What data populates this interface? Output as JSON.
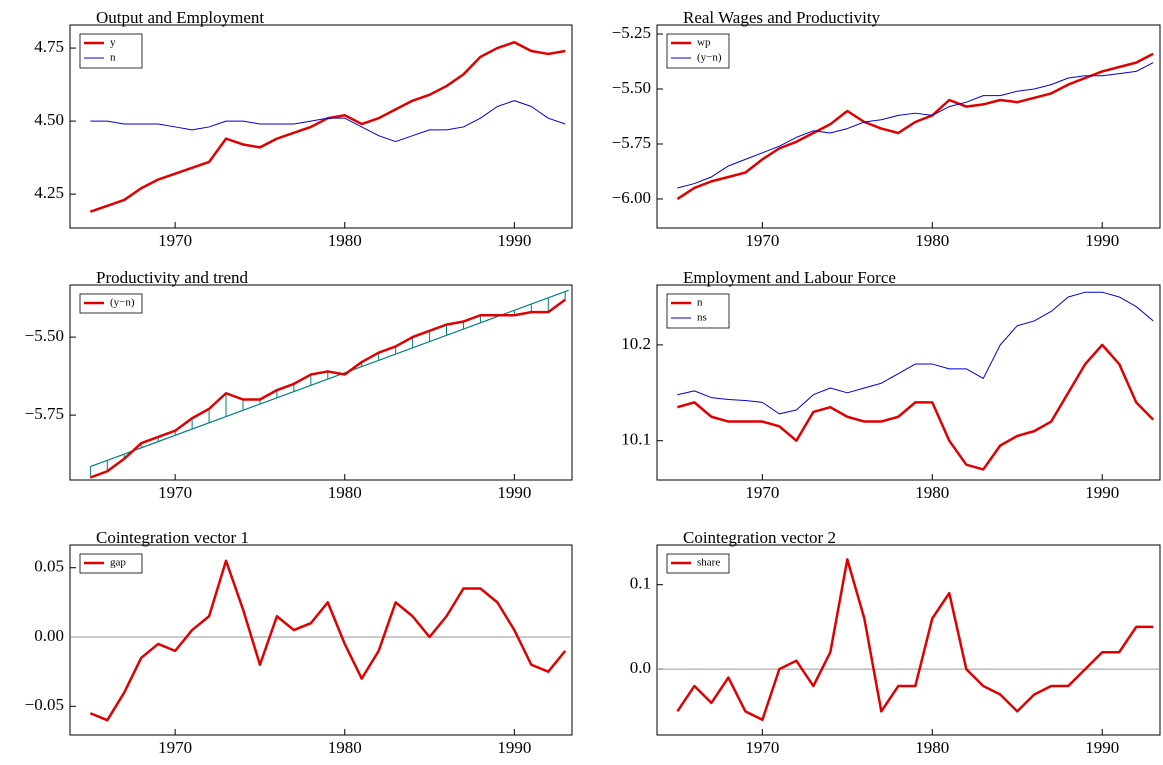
{
  "chart_data": [
    {
      "type": "line",
      "title": "Output and Employment",
      "x": [
        1965,
        1966,
        1967,
        1968,
        1969,
        1970,
        1971,
        1972,
        1973,
        1974,
        1975,
        1976,
        1977,
        1978,
        1979,
        1980,
        1981,
        1982,
        1983,
        1984,
        1985,
        1986,
        1987,
        1988,
        1989,
        1990,
        1991,
        1992,
        1993
      ],
      "series": [
        {
          "name": "y",
          "color": "#e00000",
          "values": [
            4.19,
            4.21,
            4.23,
            4.27,
            4.3,
            4.32,
            4.34,
            4.36,
            4.44,
            4.42,
            4.41,
            4.44,
            4.46,
            4.48,
            4.51,
            4.52,
            4.49,
            4.51,
            4.54,
            4.57,
            4.59,
            4.62,
            4.66,
            4.72,
            4.75,
            4.77,
            4.74,
            4.73,
            4.74
          ]
        },
        {
          "name": "n",
          "color": "#0000d0",
          "values": [
            4.5,
            4.5,
            4.49,
            4.49,
            4.49,
            4.48,
            4.47,
            4.48,
            4.5,
            4.5,
            4.49,
            4.49,
            4.49,
            4.5,
            4.51,
            4.51,
            4.48,
            4.45,
            4.43,
            4.45,
            4.47,
            4.47,
            4.48,
            4.51,
            4.55,
            4.57,
            4.55,
            4.51,
            4.49
          ]
        }
      ],
      "xlim": [
        1963.8,
        1993.4
      ],
      "ylim": [
        4.134,
        4.829
      ],
      "xticks": [
        1970,
        1980,
        1990
      ],
      "yticks": [
        {
          "value": 4.25,
          "label": "4.25"
        },
        {
          "value": 4.5,
          "label": "4.50"
        },
        {
          "value": 4.75,
          "label": "4.75"
        }
      ]
    },
    {
      "type": "line",
      "title": "Real Wages and Productivity",
      "x": [
        1965,
        1966,
        1967,
        1968,
        1969,
        1970,
        1971,
        1972,
        1973,
        1974,
        1975,
        1976,
        1977,
        1978,
        1979,
        1980,
        1981,
        1982,
        1983,
        1984,
        1985,
        1986,
        1987,
        1988,
        1989,
        1990,
        1991,
        1992,
        1993
      ],
      "series": [
        {
          "name": "wp",
          "color": "#e00000",
          "values": [
            -6.0,
            -5.95,
            -5.92,
            -5.9,
            -5.88,
            -5.82,
            -5.77,
            -5.74,
            -5.7,
            -5.66,
            -5.6,
            -5.65,
            -5.68,
            -5.7,
            -5.65,
            -5.62,
            -5.55,
            -5.58,
            -5.57,
            -5.55,
            -5.56,
            -5.54,
            -5.52,
            -5.48,
            -5.45,
            -5.42,
            -5.4,
            -5.38,
            -5.34
          ]
        },
        {
          "name": "(y−n)",
          "color": "#0000d0",
          "values": [
            -5.95,
            -5.93,
            -5.9,
            -5.85,
            -5.82,
            -5.79,
            -5.76,
            -5.72,
            -5.69,
            -5.7,
            -5.68,
            -5.65,
            -5.64,
            -5.62,
            -5.61,
            -5.62,
            -5.58,
            -5.56,
            -5.53,
            -5.53,
            -5.51,
            -5.5,
            -5.48,
            -5.45,
            -5.44,
            -5.44,
            -5.43,
            -5.42,
            -5.38
          ]
        }
      ],
      "xlim": [
        1963.8,
        1993.4
      ],
      "ylim": [
        -6.132,
        -5.209
      ],
      "xticks": [
        1970,
        1980,
        1990
      ],
      "yticks": [
        {
          "value": -6,
          "label": "−6.00"
        },
        {
          "value": -5.75,
          "label": "−5.75"
        },
        {
          "value": -5.5,
          "label": "−5.50"
        },
        {
          "value": -5.25,
          "label": "−5.25"
        }
      ]
    },
    {
      "type": "line",
      "title": "Productivity and trend",
      "x": [
        1965,
        1966,
        1967,
        1968,
        1969,
        1970,
        1971,
        1972,
        1973,
        1974,
        1975,
        1976,
        1977,
        1978,
        1979,
        1980,
        1981,
        1982,
        1983,
        1984,
        1985,
        1986,
        1987,
        1988,
        1989,
        1990,
        1991,
        1992,
        1993
      ],
      "series": [
        {
          "name": "(y−n)",
          "color": "#e00000",
          "values": [
            -5.95,
            -5.93,
            -5.89,
            -5.84,
            -5.82,
            -5.8,
            -5.76,
            -5.73,
            -5.68,
            -5.7,
            -5.7,
            -5.67,
            -5.65,
            -5.62,
            -5.61,
            -5.62,
            -5.58,
            -5.55,
            -5.53,
            -5.5,
            -5.48,
            -5.46,
            -5.45,
            -5.43,
            -5.43,
            -5.43,
            -5.42,
            -5.42,
            -5.38
          ]
        }
      ],
      "trend": {
        "color": "#008080",
        "x": [
          1965,
          1993.2
        ],
        "values": [
          -5.915,
          -5.35
        ]
      },
      "xlim": [
        1963.8,
        1993.4
      ],
      "ylim": [
        -5.958,
        -5.333
      ],
      "xticks": [
        1970,
        1980,
        1990
      ],
      "yticks": [
        {
          "value": -5.75,
          "label": "−5.75"
        },
        {
          "value": -5.5,
          "label": "−5.50"
        }
      ]
    },
    {
      "type": "line",
      "title": "Employment and Labour Force",
      "x": [
        1965,
        1966,
        1967,
        1968,
        1969,
        1970,
        1971,
        1972,
        1973,
        1974,
        1975,
        1976,
        1977,
        1978,
        1979,
        1980,
        1981,
        1982,
        1983,
        1984,
        1985,
        1986,
        1987,
        1988,
        1989,
        1990,
        1991,
        1992,
        1993
      ],
      "series": [
        {
          "name": "n",
          "color": "#e00000",
          "values": [
            10.135,
            10.14,
            10.125,
            10.12,
            10.12,
            10.12,
            10.115,
            10.1,
            10.13,
            10.135,
            10.125,
            10.12,
            10.12,
            10.125,
            10.14,
            10.14,
            10.1,
            10.075,
            10.07,
            10.095,
            10.105,
            10.11,
            10.12,
            10.15,
            10.18,
            10.2,
            10.18,
            10.14,
            10.122
          ]
        },
        {
          "name": "ns",
          "color": "#0000d0",
          "values": [
            10.148,
            10.152,
            10.145,
            10.143,
            10.142,
            10.14,
            10.128,
            10.132,
            10.148,
            10.155,
            10.15,
            10.155,
            10.16,
            10.17,
            10.18,
            10.18,
            10.175,
            10.175,
            10.165,
            10.2,
            10.22,
            10.225,
            10.235,
            10.25,
            10.255,
            10.255,
            10.25,
            10.24,
            10.225
          ]
        }
      ],
      "xlim": [
        1963.8,
        1993.4
      ],
      "ylim": [
        10.059,
        10.2625
      ],
      "xticks": [
        1970,
        1980,
        1990
      ],
      "yticks": [
        10.1,
        10.2
      ]
    },
    {
      "type": "line",
      "title": "Cointegration vector 1",
      "x": [
        1965,
        1966,
        1967,
        1968,
        1969,
        1970,
        1971,
        1972,
        1973,
        1974,
        1975,
        1976,
        1977,
        1978,
        1979,
        1980,
        1981,
        1982,
        1983,
        1984,
        1985,
        1986,
        1987,
        1988,
        1989,
        1990,
        1991,
        1992,
        1993
      ],
      "series": [
        {
          "name": "gap",
          "color": "#e00000",
          "values": [
            -0.055,
            -0.06,
            -0.04,
            -0.015,
            -0.005,
            -0.01,
            0.005,
            0.015,
            0.055,
            0.02,
            -0.02,
            0.015,
            0.005,
            0.01,
            0.025,
            -0.005,
            -0.03,
            -0.01,
            0.025,
            0.015,
            0.0,
            0.015,
            0.035,
            0.035,
            0.025,
            0.005,
            -0.02,
            -0.025,
            -0.01
          ]
        }
      ],
      "hline": 0,
      "xlim": [
        1963.8,
        1993.4
      ],
      "ylim": [
        -0.0707,
        0.0664
      ],
      "xticks": [
        1970,
        1980,
        1990
      ],
      "yticks": [
        {
          "value": -0.05,
          "label": "−0.05"
        },
        {
          "value": 0,
          "label": "0.00"
        },
        {
          "value": 0.05,
          "label": "0.05"
        }
      ]
    },
    {
      "type": "line",
      "title": "Cointegration vector 2",
      "x": [
        1965,
        1966,
        1967,
        1968,
        1969,
        1970,
        1971,
        1972,
        1973,
        1974,
        1975,
        1976,
        1977,
        1978,
        1979,
        1980,
        1981,
        1982,
        1983,
        1984,
        1985,
        1986,
        1987,
        1988,
        1989,
        1990,
        1991,
        1992,
        1993
      ],
      "series": [
        {
          "name": "share",
          "color": "#e00000",
          "values": [
            -0.05,
            -0.02,
            -0.04,
            -0.01,
            -0.05,
            -0.06,
            0.0,
            0.01,
            -0.02,
            0.02,
            0.13,
            0.06,
            -0.05,
            -0.02,
            -0.02,
            0.06,
            0.09,
            0.0,
            -0.02,
            -0.03,
            -0.05,
            -0.03,
            -0.02,
            -0.02,
            0.0,
            0.02,
            0.02,
            0.05,
            0.05
          ]
        }
      ],
      "hline": 0,
      "xlim": [
        1963.8,
        1993.4
      ],
      "ylim": [
        -0.078,
        0.147
      ],
      "xticks": [
        1970,
        1980,
        1990
      ],
      "yticks": [
        {
          "value": 0,
          "label": "0.0"
        },
        0.1
      ]
    }
  ]
}
